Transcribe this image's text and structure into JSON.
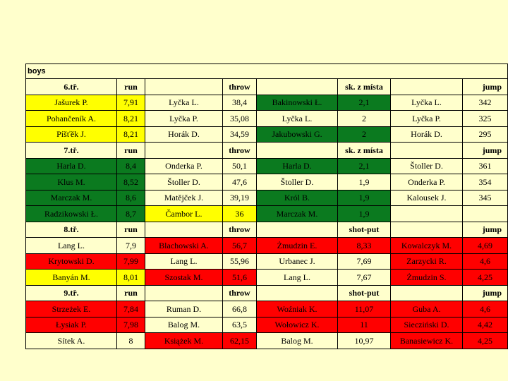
{
  "title": "boys",
  "colors": {
    "white": "#ffffcc",
    "yellow": "#ffff00",
    "green": "#0b7a1f",
    "red": "#ff0000"
  },
  "rows": [
    {
      "type": "header",
      "cells": [
        {
          "t": "6.tř."
        },
        {
          "t": "run"
        },
        {
          "t": ""
        },
        {
          "t": "throw"
        },
        {
          "t": ""
        },
        {
          "t": "sk. z místa"
        },
        {
          "t": ""
        },
        {
          "t": "jump",
          "cls": "jump-h"
        }
      ]
    },
    {
      "type": "data",
      "cells": [
        {
          "t": "Jašurek P.",
          "c": "y"
        },
        {
          "t": "7,91",
          "c": "y"
        },
        {
          "t": "Lyčka L.",
          "c": "w"
        },
        {
          "t": "38,4",
          "c": "w"
        },
        {
          "t": "Bakinowski Ł.",
          "c": "g"
        },
        {
          "t": "2,1",
          "c": "g"
        },
        {
          "t": "Lyčka L.",
          "c": "w"
        },
        {
          "t": "342",
          "c": "w"
        }
      ]
    },
    {
      "type": "data",
      "cells": [
        {
          "t": "Pohančeník A.",
          "c": "y"
        },
        {
          "t": "8,21",
          "c": "y"
        },
        {
          "t": "Lyčka P.",
          "c": "w"
        },
        {
          "t": "35,08",
          "c": "w"
        },
        {
          "t": "Lyčka L.",
          "c": "w"
        },
        {
          "t": "2",
          "c": "w"
        },
        {
          "t": "Lyčka P.",
          "c": "w"
        },
        {
          "t": "325",
          "c": "w"
        }
      ]
    },
    {
      "type": "data",
      "cells": [
        {
          "t": "Píšťěk J.",
          "c": "y"
        },
        {
          "t": "8,21",
          "c": "y"
        },
        {
          "t": "Horák D.",
          "c": "w"
        },
        {
          "t": "34,59",
          "c": "w"
        },
        {
          "t": "Jakubowski G.",
          "c": "g"
        },
        {
          "t": "2",
          "c": "g"
        },
        {
          "t": "Horák D.",
          "c": "w"
        },
        {
          "t": "295",
          "c": "w"
        }
      ]
    },
    {
      "type": "header",
      "cells": [
        {
          "t": "7.tř."
        },
        {
          "t": "run"
        },
        {
          "t": ""
        },
        {
          "t": "throw"
        },
        {
          "t": ""
        },
        {
          "t": "sk. z místa"
        },
        {
          "t": ""
        },
        {
          "t": "jump",
          "cls": "jump-h"
        }
      ]
    },
    {
      "type": "data",
      "cells": [
        {
          "t": "Harla D.",
          "c": "g"
        },
        {
          "t": "8,4",
          "c": "g"
        },
        {
          "t": "Onderka P.",
          "c": "w"
        },
        {
          "t": "50,1",
          "c": "w"
        },
        {
          "t": "Harla D.",
          "c": "g"
        },
        {
          "t": "2,1",
          "c": "g"
        },
        {
          "t": "Štoller D.",
          "c": "w"
        },
        {
          "t": "361",
          "c": "w"
        }
      ]
    },
    {
      "type": "data",
      "cells": [
        {
          "t": "Klus M.",
          "c": "g"
        },
        {
          "t": "8,52",
          "c": "g"
        },
        {
          "t": "Štoller D.",
          "c": "w"
        },
        {
          "t": "47,6",
          "c": "w"
        },
        {
          "t": "Štoller D.",
          "c": "w"
        },
        {
          "t": "1,9",
          "c": "w"
        },
        {
          "t": "Onderka P.",
          "c": "w"
        },
        {
          "t": "354",
          "c": "w"
        }
      ]
    },
    {
      "type": "data",
      "cells": [
        {
          "t": "Marczak M.",
          "c": "g"
        },
        {
          "t": "8,6",
          "c": "g"
        },
        {
          "t": "Matějček J.",
          "c": "w"
        },
        {
          "t": "39,19",
          "c": "w"
        },
        {
          "t": "Król B.",
          "c": "g"
        },
        {
          "t": "1,9",
          "c": "g"
        },
        {
          "t": "Kalousek J.",
          "c": "w"
        },
        {
          "t": "345",
          "c": "w"
        }
      ]
    },
    {
      "type": "data",
      "cells": [
        {
          "t": "Radzikowski Ł.",
          "c": "g"
        },
        {
          "t": "8,7",
          "c": "g"
        },
        {
          "t": "Čambor L.",
          "c": "y"
        },
        {
          "t": "36",
          "c": "y"
        },
        {
          "t": "Marczak M.",
          "c": "g"
        },
        {
          "t": "1,9",
          "c": "g"
        },
        {
          "t": "",
          "c": "w"
        },
        {
          "t": "",
          "c": "w"
        }
      ]
    },
    {
      "type": "header",
      "cells": [
        {
          "t": "8.tř."
        },
        {
          "t": "run"
        },
        {
          "t": ""
        },
        {
          "t": "throw"
        },
        {
          "t": ""
        },
        {
          "t": "shot-put"
        },
        {
          "t": ""
        },
        {
          "t": "jump",
          "cls": "jump-h"
        }
      ]
    },
    {
      "type": "data",
      "cells": [
        {
          "t": "Lang L.",
          "c": "w"
        },
        {
          "t": "7,9",
          "c": "w"
        },
        {
          "t": "Blachowski A.",
          "c": "r"
        },
        {
          "t": "56,7",
          "c": "r"
        },
        {
          "t": "Żmudzin E.",
          "c": "r"
        },
        {
          "t": "8,33",
          "c": "r"
        },
        {
          "t": "Kowalczyk M.",
          "c": "r"
        },
        {
          "t": "4,69",
          "c": "r"
        }
      ]
    },
    {
      "type": "data",
      "cells": [
        {
          "t": "Krytowski D.",
          "c": "r"
        },
        {
          "t": "7,99",
          "c": "r"
        },
        {
          "t": "Lang L.",
          "c": "w"
        },
        {
          "t": "55,96",
          "c": "w"
        },
        {
          "t": "Urbanec J.",
          "c": "w"
        },
        {
          "t": "7,69",
          "c": "w"
        },
        {
          "t": "Zarzycki R.",
          "c": "r"
        },
        {
          "t": "4,6",
          "c": "r"
        }
      ]
    },
    {
      "type": "data",
      "cells": [
        {
          "t": "Banyán M.",
          "c": "y"
        },
        {
          "t": "8,01",
          "c": "y"
        },
        {
          "t": "Szostak M.",
          "c": "r"
        },
        {
          "t": "51,6",
          "c": "r"
        },
        {
          "t": "Lang L.",
          "c": "w"
        },
        {
          "t": "7,67",
          "c": "w"
        },
        {
          "t": "Żmudzin S.",
          "c": "r"
        },
        {
          "t": "4,25",
          "c": "r"
        }
      ]
    },
    {
      "type": "header",
      "cells": [
        {
          "t": "9.tř."
        },
        {
          "t": "run"
        },
        {
          "t": ""
        },
        {
          "t": "throw"
        },
        {
          "t": ""
        },
        {
          "t": "shot-put"
        },
        {
          "t": ""
        },
        {
          "t": "jump",
          "cls": "jump-h"
        }
      ]
    },
    {
      "type": "data",
      "cells": [
        {
          "t": "Strzeżek E.",
          "c": "r"
        },
        {
          "t": "7,84",
          "c": "r"
        },
        {
          "t": "Ruman D.",
          "c": "w"
        },
        {
          "t": "66,8",
          "c": "w"
        },
        {
          "t": "Woźniak K.",
          "c": "r"
        },
        {
          "t": "11,07",
          "c": "r"
        },
        {
          "t": "Guba A.",
          "c": "r"
        },
        {
          "t": "4,6",
          "c": "r"
        }
      ]
    },
    {
      "type": "data",
      "cells": [
        {
          "t": "Łysiak P.",
          "c": "r"
        },
        {
          "t": "7,98",
          "c": "r"
        },
        {
          "t": "Balog M.",
          "c": "w"
        },
        {
          "t": "63,5",
          "c": "w"
        },
        {
          "t": "Wołowicz K.",
          "c": "r"
        },
        {
          "t": "11",
          "c": "r"
        },
        {
          "t": "Siecziński D.",
          "c": "r"
        },
        {
          "t": "4,42",
          "c": "r"
        }
      ]
    },
    {
      "type": "data",
      "cells": [
        {
          "t": "Sítek A.",
          "c": "w"
        },
        {
          "t": "8",
          "c": "w"
        },
        {
          "t": "Książek M.",
          "c": "r"
        },
        {
          "t": "62,15",
          "c": "r"
        },
        {
          "t": "Balog M.",
          "c": "w"
        },
        {
          "t": "10,97",
          "c": "w"
        },
        {
          "t": "Banasiewicz K.",
          "c": "r"
        },
        {
          "t": "4,25",
          "c": "r"
        }
      ]
    }
  ]
}
